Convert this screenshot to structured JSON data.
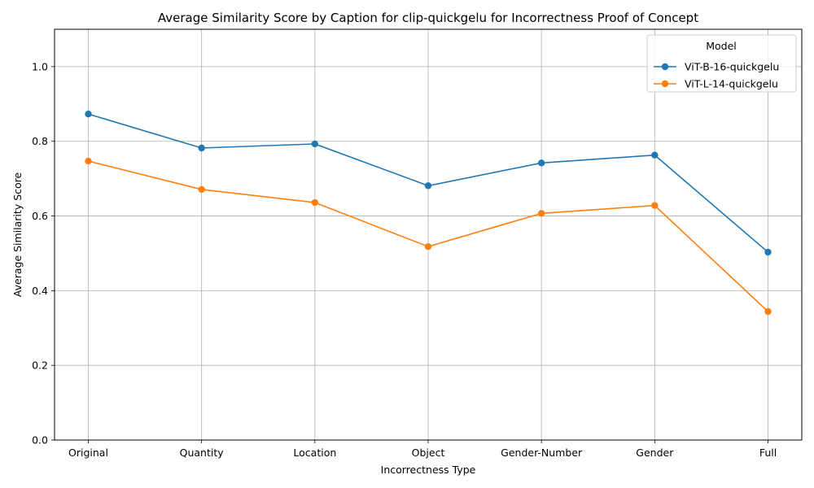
{
  "chart_data": {
    "type": "line",
    "title": "Average Similarity Score by Caption for clip-quickgelu for Incorrectness Proof of Concept",
    "xlabel": "Incorrectness Type",
    "ylabel": "Average Similarity Score",
    "categories": [
      "Original",
      "Quantity",
      "Location",
      "Object",
      "Gender-Number",
      "Gender",
      "Full"
    ],
    "ylim": [
      0,
      1.1
    ],
    "yticks": [
      "0.0",
      "0.2",
      "0.4",
      "0.6",
      "0.8",
      "1.0"
    ],
    "grid": true,
    "legend": {
      "title": "Model",
      "position": "top-right"
    },
    "series": [
      {
        "name": "ViT-B-16-quickgelu",
        "color": "#1f77b4",
        "values": [
          0.873,
          0.782,
          0.793,
          0.681,
          0.742,
          0.763,
          0.503
        ]
      },
      {
        "name": "ViT-L-14-quickgelu",
        "color": "#ff7f0e",
        "values": [
          0.747,
          0.671,
          0.636,
          0.518,
          0.607,
          0.628,
          0.344
        ]
      }
    ]
  }
}
